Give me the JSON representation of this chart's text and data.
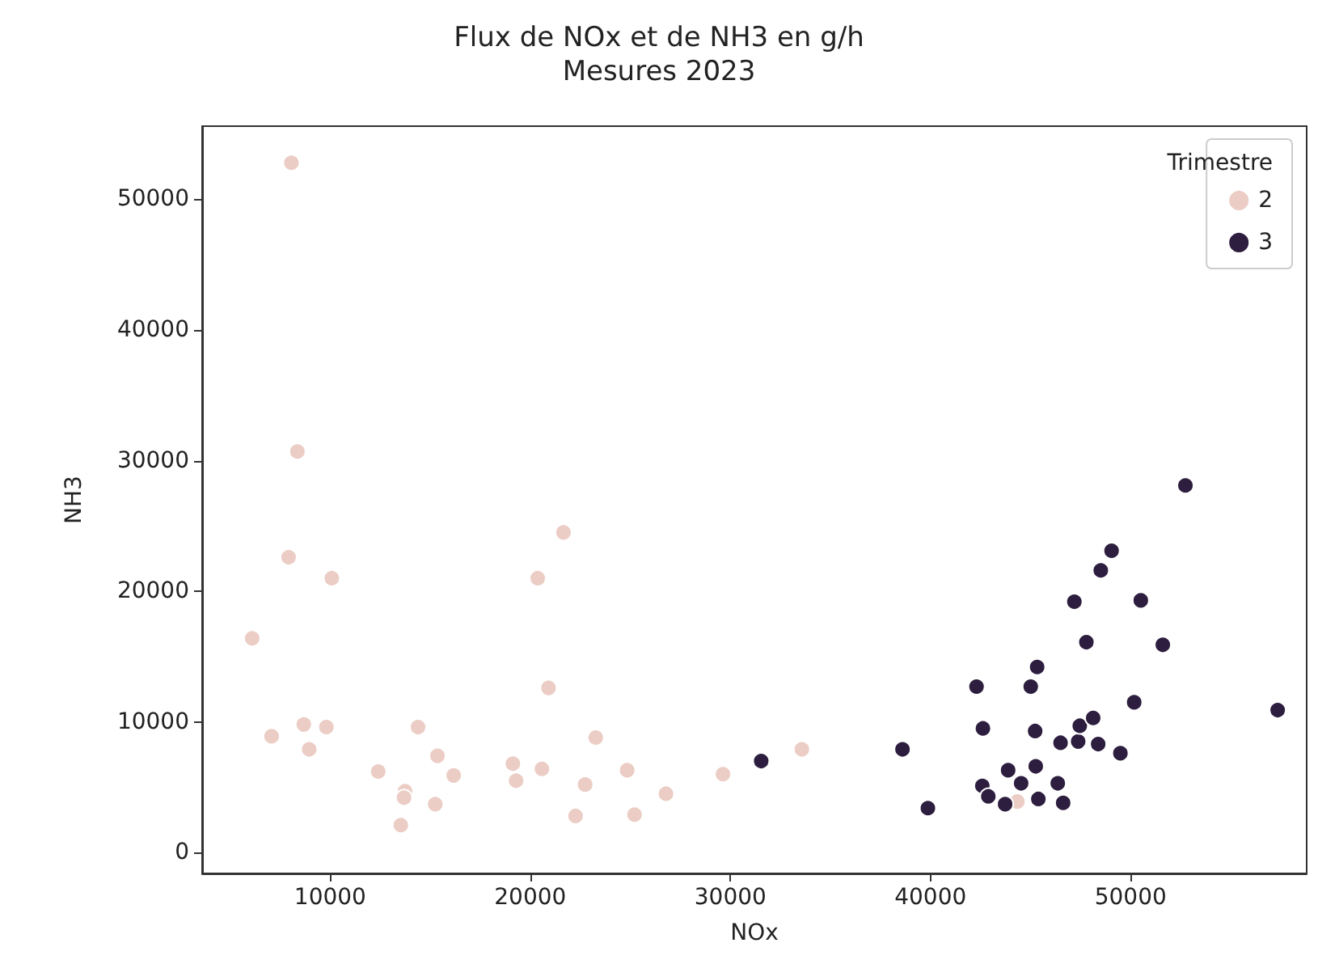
{
  "chart_data": {
    "type": "scatter",
    "title": "Flux de NOx et de NH3 en g/h",
    "subtitle": "Mesures 2023",
    "xlabel": "NOx",
    "ylabel": "NH3",
    "legend_title": "Trimestre",
    "legend": "top right",
    "grid": false,
    "marker": "circle",
    "xlim": [
      3600,
      58800
    ],
    "ylim": [
      -1600,
      55600
    ],
    "xticks": [
      10000,
      20000,
      30000,
      40000,
      50000
    ],
    "yticks": [
      0,
      10000,
      20000,
      30000,
      40000,
      50000
    ],
    "series": [
      {
        "name": "2",
        "color": "#ebcdc5",
        "x": [
          8060,
          8360,
          7920,
          10080,
          6100,
          7070,
          8680,
          9810,
          8950,
          12400,
          13740,
          13690,
          13530,
          14390,
          15360,
          16170,
          15250,
          19130,
          19290,
          20370,
          21660,
          20910,
          20580,
          23270,
          22740,
          22260,
          24840,
          25210,
          26780,
          29630,
          33570,
          44340
        ],
        "values": [
          52800,
          30700,
          22600,
          21000,
          16400,
          8900,
          9800,
          9600,
          7900,
          6200,
          4700,
          4200,
          2100,
          9600,
          7400,
          5900,
          3700,
          6800,
          5500,
          21000,
          24500,
          12600,
          6400,
          8800,
          5200,
          2800,
          6300,
          2900,
          4500,
          6000,
          7900,
          3900
        ]
      },
      {
        "name": "3",
        "color": "#2d1d3e",
        "x": [
          31540,
          38600,
          39870,
          42300,
          42620,
          42590,
          42890,
          43730,
          43880,
          44530,
          45010,
          45330,
          45230,
          45260,
          45390,
          46360,
          46630,
          46500,
          47190,
          47380,
          47460,
          47790,
          48130,
          48380,
          48510,
          49050,
          49490,
          50180,
          50510,
          51610,
          52740,
          57350
        ],
        "values": [
          7000,
          7900,
          3400,
          12700,
          9500,
          5100,
          4300,
          3700,
          6300,
          5300,
          12700,
          14200,
          9300,
          6600,
          4100,
          5300,
          3800,
          8400,
          19200,
          8500,
          9700,
          16100,
          10300,
          8300,
          21600,
          23100,
          7600,
          11500,
          19300,
          15900,
          28100,
          10900
        ]
      }
    ]
  }
}
